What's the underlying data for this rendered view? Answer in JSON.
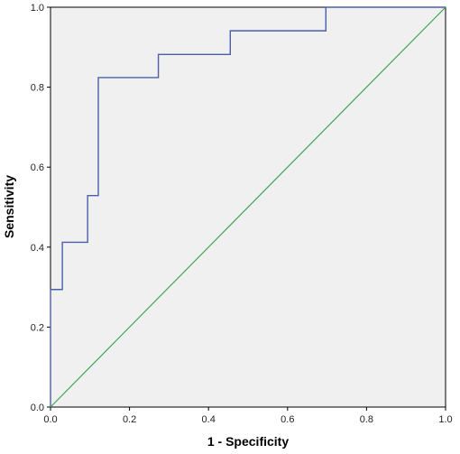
{
  "chart_data": {
    "type": "line",
    "xlabel": "1 - Specificity",
    "ylabel": "Sensitivity",
    "xlim": [
      0,
      1
    ],
    "ylim": [
      0,
      1
    ],
    "x_ticks": [
      "0.0",
      "0.2",
      "0.4",
      "0.6",
      "0.8",
      "1.0"
    ],
    "y_ticks": [
      "0.0",
      "0.2",
      "0.4",
      "0.6",
      "0.8",
      "1.0"
    ],
    "grid": false,
    "series": [
      {
        "role": "roc-curve",
        "style": "step",
        "color": "#4a5fa8",
        "points": [
          [
            0.0,
            0.0
          ],
          [
            0.0,
            0.294
          ],
          [
            0.03,
            0.294
          ],
          [
            0.03,
            0.412
          ],
          [
            0.094,
            0.412
          ],
          [
            0.094,
            0.529
          ],
          [
            0.121,
            0.529
          ],
          [
            0.121,
            0.824
          ],
          [
            0.273,
            0.824
          ],
          [
            0.273,
            0.882
          ],
          [
            0.455,
            0.882
          ],
          [
            0.455,
            0.941
          ],
          [
            0.697,
            0.941
          ],
          [
            0.697,
            1.0
          ],
          [
            1.0,
            1.0
          ]
        ]
      },
      {
        "role": "reference-line",
        "color": "#3aa655",
        "points": [
          [
            0,
            0
          ],
          [
            1,
            1
          ]
        ]
      }
    ],
    "plot_background": "#f0f0f0"
  }
}
